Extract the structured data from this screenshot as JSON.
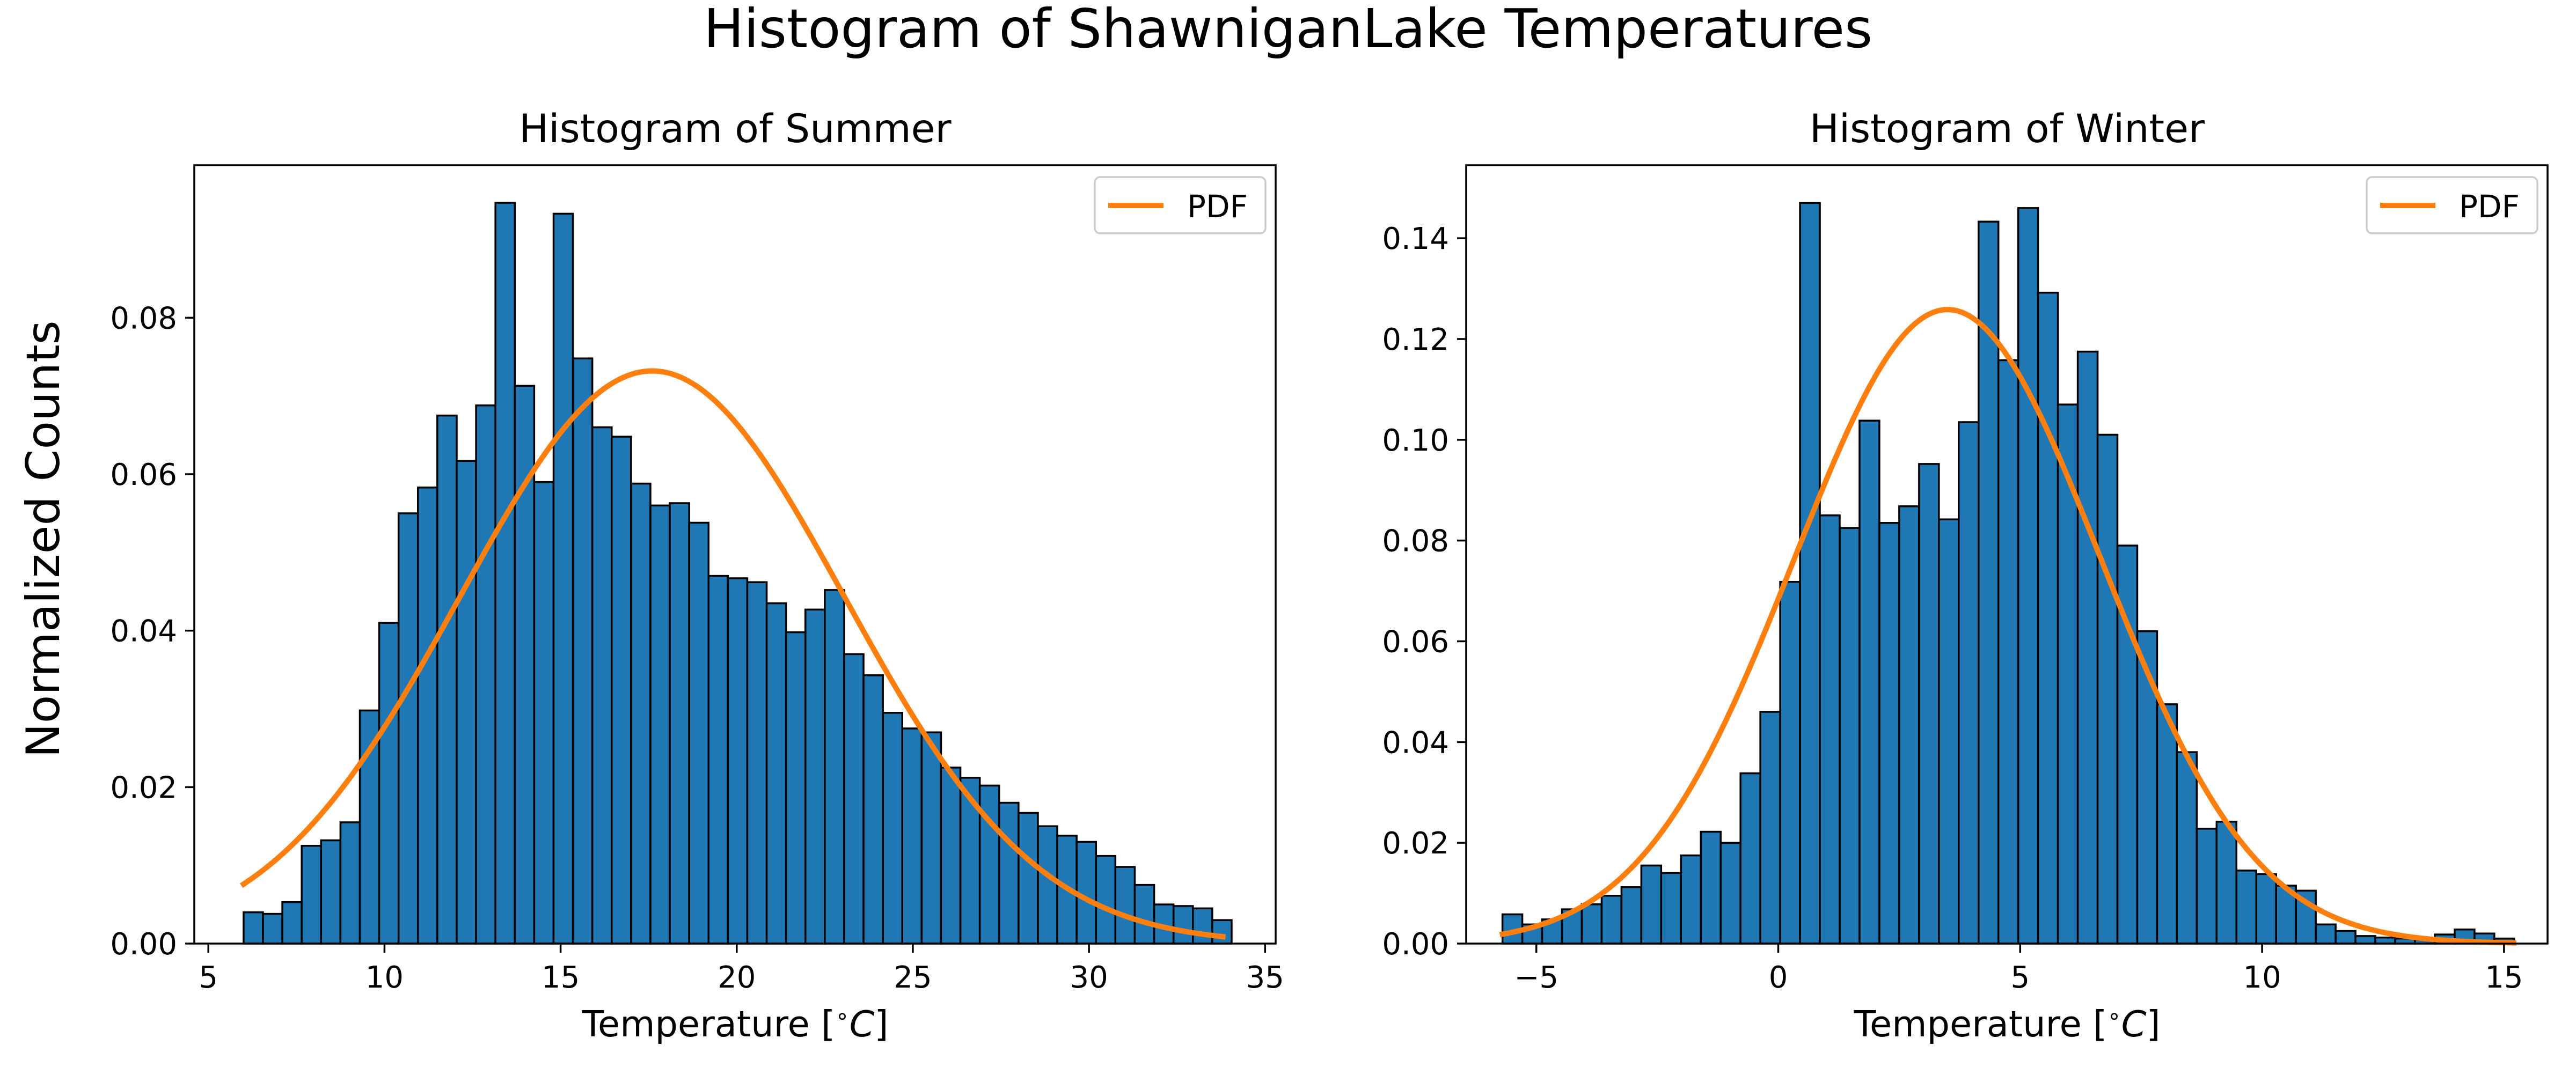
{
  "figure": {
    "suptitle": "Histogram of ShawniganLake Temperatures",
    "ylabel": "Normalized Counts"
  },
  "colors": {
    "bar_fill": "#1f77b4",
    "bar_edge": "#000000",
    "pdf_line": "#ff7f0e"
  },
  "chart_data": [
    {
      "type": "bar",
      "title": "Histogram of Summer",
      "xlabel": "Temperature [$^\\circ C$]",
      "xlabel_main": "Temperature [",
      "xlabel_unit": "C",
      "xlabel_close": "]",
      "legend": [
        "PDF"
      ],
      "legend_position": "top-right",
      "xlim": [
        4.6,
        35.3
      ],
      "ylim": [
        0,
        0.0995
      ],
      "xticks": [
        5,
        10,
        15,
        20,
        25,
        30,
        35
      ],
      "yticks": [
        "0.00",
        "0.02",
        "0.04",
        "0.06",
        "0.08"
      ],
      "bin_start": 6.0,
      "bin_width": 0.55,
      "values": [
        0.004,
        0.0038,
        0.0053,
        0.0125,
        0.0132,
        0.0155,
        0.0298,
        0.041,
        0.055,
        0.0583,
        0.0675,
        0.0617,
        0.0688,
        0.0947,
        0.0713,
        0.059,
        0.0933,
        0.0748,
        0.066,
        0.0648,
        0.0588,
        0.056,
        0.0563,
        0.0538,
        0.047,
        0.0467,
        0.0462,
        0.0435,
        0.0398,
        0.0427,
        0.0452,
        0.037,
        0.0343,
        0.0295,
        0.0275,
        0.027,
        0.0225,
        0.0212,
        0.0202,
        0.018,
        0.0167,
        0.015,
        0.0138,
        0.013,
        0.0112,
        0.0098,
        0.0075,
        0.005,
        0.0048,
        0.0045,
        0.003
      ],
      "pdf": {
        "x_start": 6.0,
        "x_end": 33.8,
        "mean": 17.6,
        "std": 5.45
      }
    },
    {
      "type": "bar",
      "title": "Histogram of Winter",
      "xlabel": "Temperature [$^\\circ C$]",
      "xlabel_main": "Temperature [",
      "xlabel_unit": "C",
      "xlabel_close": "]",
      "legend": [
        "PDF"
      ],
      "legend_position": "top-right",
      "xlim": [
        -6.45,
        15.9
      ],
      "ylim": [
        0,
        0.1545
      ],
      "xticks": [
        "−5",
        "0",
        "5",
        "10",
        "15"
      ],
      "xtick_values": [
        -5,
        0,
        5,
        10,
        15
      ],
      "yticks": [
        "0.00",
        "0.02",
        "0.04",
        "0.06",
        "0.08",
        "0.10",
        "0.12",
        "0.14"
      ],
      "bin_start": -5.7,
      "bin_width": 0.41,
      "values": [
        0.0058,
        0.0038,
        0.0048,
        0.0068,
        0.0078,
        0.0095,
        0.0112,
        0.0155,
        0.014,
        0.0175,
        0.0222,
        0.02,
        0.0338,
        0.046,
        0.0718,
        0.147,
        0.085,
        0.0825,
        0.1038,
        0.0835,
        0.0868,
        0.0952,
        0.0842,
        0.1035,
        0.1433,
        0.1158,
        0.146,
        0.1292,
        0.107,
        0.1175,
        0.101,
        0.079,
        0.062,
        0.0475,
        0.038,
        0.0228,
        0.0242,
        0.0145,
        0.0138,
        0.0115,
        0.0105,
        0.0038,
        0.0025,
        0.0015,
        0.0012,
        0.001,
        0.0008,
        0.0018,
        0.0028,
        0.002,
        0.001
      ],
      "pdf": {
        "x_start": -5.7,
        "x_end": 15.2,
        "mean": 3.5,
        "std": 3.17
      }
    }
  ]
}
